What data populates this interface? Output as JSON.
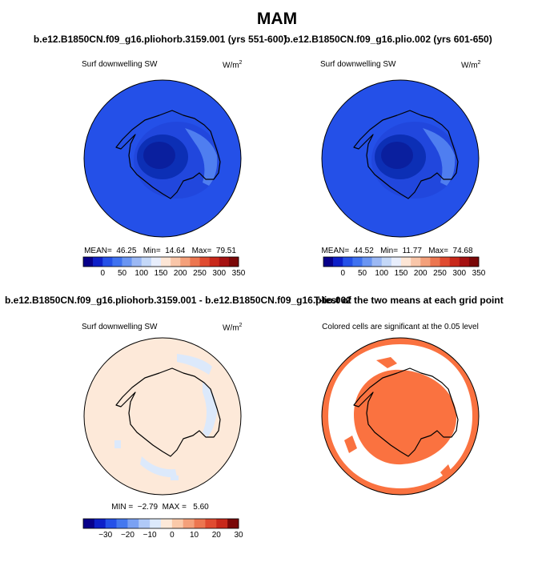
{
  "figure": {
    "title": "MAM"
  },
  "panels": {
    "tl": {
      "case_title": "b.e12.B1850CN.f09_g16.pliohorb.3159.001 (yrs 551-600)",
      "variable": "Surf downwelling SW",
      "units": "W/m",
      "units_sup": "2",
      "stats": "MEAN=  46.25   Min=  14.64   Max=  79.51"
    },
    "tr": {
      "case_title": "b.e12.B1850CN.f09_g16.plio.002 (yrs 601-650)",
      "variable": "Surf downwelling SW",
      "units": "W/m",
      "units_sup": "2",
      "stats": "MEAN=  44.52   Min=  11.77   Max=  74.68"
    },
    "bl": {
      "case_title": "b.e12.B1850CN.f09_g16.pliohorb.3159.001 - b.e12.B1850CN.f09_g16.plio.002",
      "variable": "Surf downwelling SW",
      "units": "W/m",
      "units_sup": "2",
      "stats": "MIN =  −2.79  MAX =   5.60"
    },
    "br": {
      "case_title": "T-test of the two means at each grid point",
      "subtitle": "Colored cells are significant at the 0.05 level"
    }
  },
  "chart_data": [
    {
      "type": "heatmap",
      "title": "b.e12.B1850CN.f09_g16.pliohorb.3159.001 (yrs 551-600)",
      "variable": "Surf downwelling SW",
      "units": "W/m2",
      "projection": "south polar stereographic",
      "stats": {
        "mean": 46.25,
        "min": 14.64,
        "max": 79.51
      },
      "colorbar": {
        "tick_labels": [
          "0",
          "50",
          "100",
          "150",
          "200",
          "250",
          "300",
          "350"
        ],
        "range": [
          0,
          350
        ]
      }
    },
    {
      "type": "heatmap",
      "title": "b.e12.B1850CN.f09_g16.plio.002 (yrs 601-650)",
      "variable": "Surf downwelling SW",
      "units": "W/m2",
      "projection": "south polar stereographic",
      "stats": {
        "mean": 44.52,
        "min": 11.77,
        "max": 74.68
      },
      "colorbar": {
        "tick_labels": [
          "0",
          "50",
          "100",
          "150",
          "200",
          "250",
          "300",
          "350"
        ],
        "range": [
          0,
          350
        ]
      }
    },
    {
      "type": "heatmap",
      "title": "b.e12.B1850CN.f09_g16.pliohorb.3159.001 - b.e12.B1850CN.f09_g16.plio.002",
      "variable": "Surf downwelling SW",
      "units": "W/m2",
      "projection": "south polar stereographic",
      "stats": {
        "min": -2.79,
        "max": 5.6
      },
      "colorbar": {
        "tick_labels": [
          "−30",
          "−20",
          "−10",
          "0",
          "10",
          "20",
          "30"
        ],
        "range": [
          -30,
          30
        ]
      }
    },
    {
      "type": "heatmap",
      "title": "T-test of the two means at each grid point",
      "subtitle": "Colored cells are significant at the 0.05 level",
      "projection": "south polar stereographic"
    }
  ],
  "colors": {
    "abs_scale": [
      "#08008a",
      "#0d1fc8",
      "#2450e8",
      "#3f72f0",
      "#6a95f2",
      "#9bb8f4",
      "#c4d8f8",
      "#e8eefc",
      "#fde6d6",
      "#f9c6a9",
      "#f4a07a",
      "#ec7650",
      "#e04b30",
      "#c8281a",
      "#a51111",
      "#7a0707"
    ],
    "diff_scale": [
      "#08008a",
      "#0d1fc8",
      "#2450e8",
      "#4478ef",
      "#7aa1f3",
      "#b0c9f7",
      "#dce9fb",
      "#fde9d9",
      "#fac9a9",
      "#f4a07a",
      "#ec7650",
      "#e04b30",
      "#c8281a",
      "#7a0707"
    ],
    "ttest_fill": "#fa7240"
  }
}
